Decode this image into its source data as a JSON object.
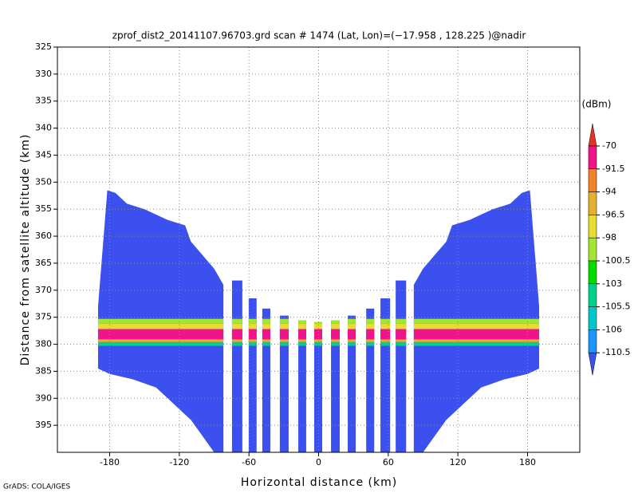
{
  "chart_data": {
    "type": "radar-profile",
    "title": "zprof_dist2_20141107.96703.grd   scan # 1474   (Lat, Lon)=(−17.958 , 128.225 )@nadir",
    "xlabel": "Horizontal distance (km)",
    "ylabel": "Distance from satellite altitude (km)",
    "footer": "GrADS: COLA/IGES",
    "xlim": [
      -225,
      225
    ],
    "ylim": [
      325,
      400
    ],
    "xticks": [
      -180,
      -120,
      -60,
      0,
      60,
      120,
      180
    ],
    "yticks": [
      325,
      330,
      335,
      340,
      345,
      350,
      355,
      360,
      365,
      370,
      375,
      380,
      385,
      390,
      395
    ],
    "grid": true,
    "colorbar": {
      "unit": "(dBm)",
      "levels": [
        -70,
        -91.5,
        -94,
        -96.5,
        -98,
        -100.5,
        -103,
        -105.5,
        -106,
        -110.5
      ],
      "colors": [
        "#3c50f0",
        "#1e96ff",
        "#00c8c8",
        "#00d28c",
        "#00dc00",
        "#a0e632",
        "#e6dc32",
        "#e6af2d",
        "#f08228",
        "#f0148c",
        "#e6322b"
      ]
    },
    "field": {
      "wings": [
        {
          "outline": [
            [
              -190,
              373
            ],
            [
              -182,
              351.5
            ],
            [
              -175,
              352
            ],
            [
              -165,
              354
            ],
            [
              -150,
              355
            ],
            [
              -130,
              357
            ],
            [
              -115,
              358
            ],
            [
              -110,
              361
            ],
            [
              -100,
              363.5
            ],
            [
              -90,
              366
            ],
            [
              -82,
              369
            ],
            [
              -82,
              400
            ],
            [
              -90,
              400
            ],
            [
              -100,
              397
            ],
            [
              -110,
              394
            ],
            [
              -120,
              392
            ],
            [
              -130,
              390
            ],
            [
              -140,
              388
            ],
            [
              -160,
              386.5
            ],
            [
              -180,
              385.5
            ],
            [
              -190,
              384.5
            ]
          ]
        },
        {
          "outline": [
            [
              190,
              373
            ],
            [
              182,
              351.5
            ],
            [
              175,
              352
            ],
            [
              165,
              354
            ],
            [
              150,
              355
            ],
            [
              130,
              357
            ],
            [
              115,
              358
            ],
            [
              110,
              361
            ],
            [
              100,
              363.5
            ],
            [
              90,
              366
            ],
            [
              82,
              369
            ],
            [
              82,
              400
            ],
            [
              90,
              400
            ],
            [
              100,
              397
            ],
            [
              110,
              394
            ],
            [
              120,
              392
            ],
            [
              130,
              390
            ],
            [
              140,
              388
            ],
            [
              160,
              386.5
            ],
            [
              180,
              385.5
            ],
            [
              190,
              384.5
            ]
          ]
        }
      ],
      "columns": [
        {
          "x0": -74.6,
          "x1": -65.7,
          "top": 368.2,
          "bottom": 400
        },
        {
          "x0": -60.2,
          "x1": -53.4,
          "top": 371.5,
          "bottom": 400
        },
        {
          "x0": -48.5,
          "x1": -41.6,
          "top": 373.4,
          "bottom": 400
        },
        {
          "x0": -33.4,
          "x1": -25.8,
          "top": 374.7,
          "bottom": 400
        },
        {
          "x0": -17.5,
          "x1": -10.7,
          "top": 375.6,
          "bottom": 400
        },
        {
          "x0": -3.8,
          "x1": 3.1,
          "top": 375.9,
          "bottom": 400
        },
        {
          "x0": 10.7,
          "x1": 18.2,
          "top": 375.6,
          "bottom": 400
        },
        {
          "x0": 25.1,
          "x1": 32,
          "top": 374.7,
          "bottom": 400
        },
        {
          "x0": 41,
          "x1": 47.9,
          "top": 373.4,
          "bottom": 400
        },
        {
          "x0": 53.3,
          "x1": 61.6,
          "top": 371.5,
          "bottom": 400
        },
        {
          "x0": 66.4,
          "x1": 75.4,
          "top": 368.2,
          "bottom": 400
        }
      ],
      "band": [
        {
          "y0": 375.3,
          "y1": 376.2,
          "color": "#a0e632"
        },
        {
          "y0": 376.2,
          "y1": 377.2,
          "color": "#e6dc32"
        },
        {
          "y0": 377.2,
          "y1": 379.1,
          "color": "#f0148c"
        },
        {
          "y0": 379.1,
          "y1": 379.6,
          "color": "#e6af2d"
        },
        {
          "y0": 379.6,
          "y1": 380.3,
          "color": "#00d28c"
        }
      ]
    }
  }
}
